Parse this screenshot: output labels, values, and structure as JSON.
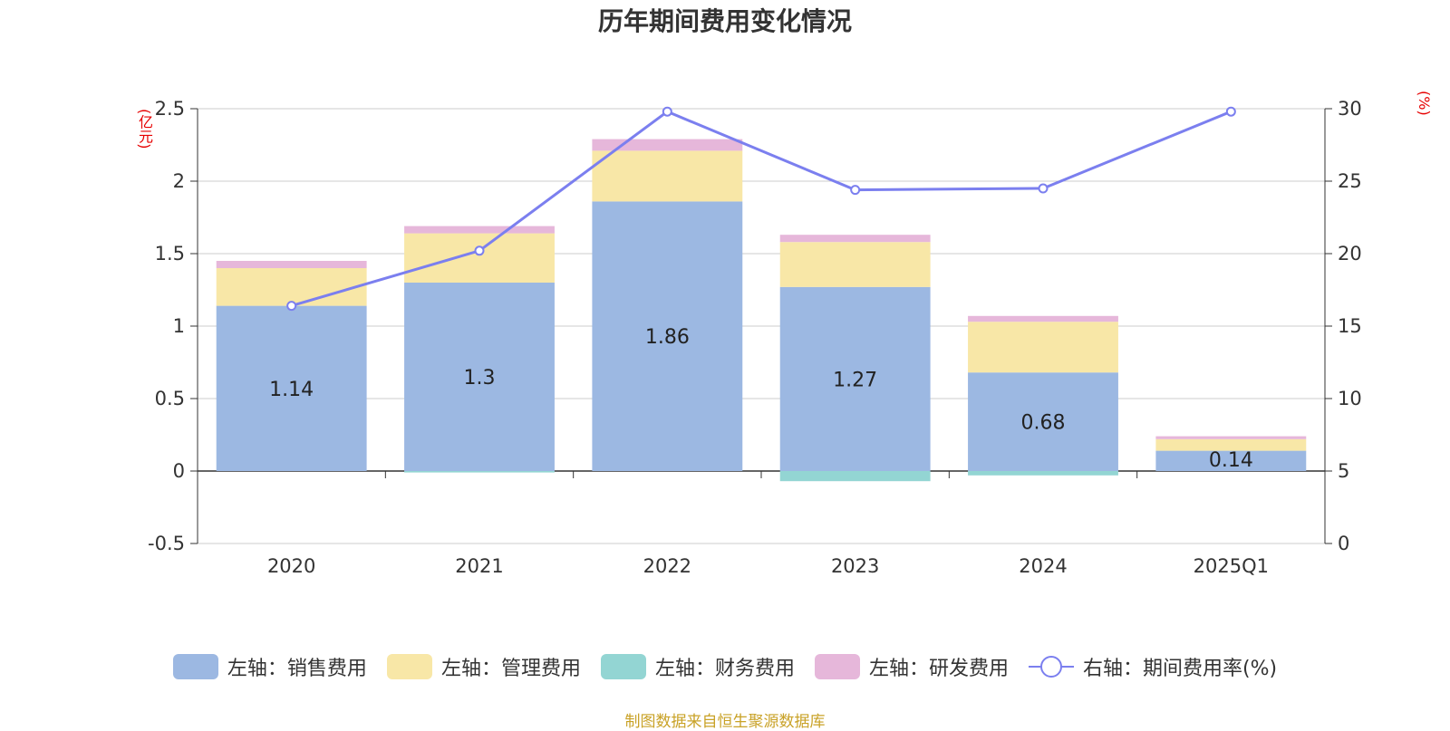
{
  "chart_data": {
    "type": "bar",
    "title": "历年期间费用变化情况",
    "categories": [
      "2020",
      "2021",
      "2022",
      "2023",
      "2024",
      "2025Q1"
    ],
    "left_axis": {
      "unit": "(亿元)",
      "ylim": [
        -0.5,
        2.5
      ],
      "ticks": [
        "-0.5",
        "0",
        "0.5",
        "1",
        "1.5",
        "2",
        "2.5"
      ]
    },
    "right_axis": {
      "unit": "(%)",
      "ylim": [
        0,
        30
      ],
      "ticks": [
        "0",
        "5",
        "10",
        "15",
        "20",
        "25",
        "30"
      ]
    },
    "series": [
      {
        "name": "左轴：销售费用",
        "axis": "left",
        "kind": "bar",
        "color": "#9cb8e2",
        "values": [
          1.14,
          1.3,
          1.86,
          1.27,
          0.68,
          0.14
        ],
        "labels": [
          "1.14",
          "1.3",
          "1.86",
          "1.27",
          "0.68",
          "0.14"
        ]
      },
      {
        "name": "左轴：管理费用",
        "axis": "left",
        "kind": "bar",
        "color": "#f8e7a7",
        "values": [
          0.26,
          0.34,
          0.35,
          0.31,
          0.35,
          0.08
        ]
      },
      {
        "name": "左轴：财务费用",
        "axis": "left",
        "kind": "bar",
        "color": "#93d5d3",
        "values": [
          0.0,
          -0.01,
          0.0,
          -0.07,
          -0.03,
          0.0
        ]
      },
      {
        "name": "左轴：研发费用",
        "axis": "left",
        "kind": "bar",
        "color": "#e6b7da",
        "values": [
          0.05,
          0.05,
          0.08,
          0.05,
          0.04,
          0.02
        ]
      },
      {
        "name": "右轴：期间费用率(%)",
        "axis": "right",
        "kind": "line",
        "color": "#7b7fef",
        "values": [
          16.4,
          20.2,
          29.8,
          24.4,
          24.5,
          29.8
        ]
      }
    ],
    "legend_position": "bottom",
    "grid": true
  },
  "source": "制图数据来自恒生聚源数据库"
}
